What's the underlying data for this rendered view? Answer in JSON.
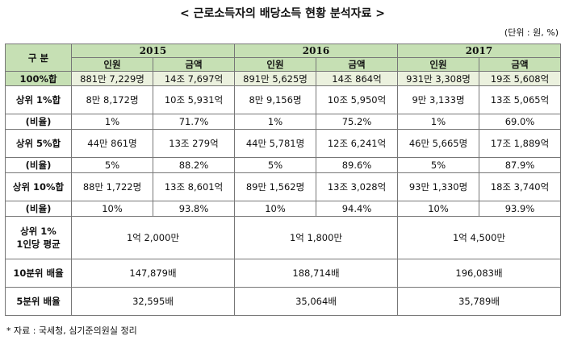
{
  "title": "< 근로소득자의 배당소득 현황 분석자료 >",
  "unit": "(단위 : 원, %)",
  "header": {
    "category": "구  분",
    "years": [
      "2015",
      "2016",
      "2017"
    ],
    "col_people": "인원",
    "col_amount": "금액"
  },
  "rows": [
    {
      "label": "100%합",
      "cells": [
        "881만 7,229명",
        "14조 7,697억",
        "891만 5,625명",
        "14조 864억",
        "931만 3,308명",
        "19조 5,608억"
      ]
    },
    {
      "label": "상위 1%합",
      "cells": [
        "8만 8,172명",
        "10조 5,931억",
        "8만 9,156명",
        "10조 5,950억",
        "9만 3,133명",
        "13조 5,065억"
      ]
    },
    {
      "label": "(비율)",
      "cells": [
        "1%",
        "71.7%",
        "1%",
        "75.2%",
        "1%",
        "69.0%"
      ]
    },
    {
      "label": "상위 5%합",
      "cells": [
        "44만 861명",
        "13조 279억",
        "44만 5,781명",
        "12조 6,241억",
        "46만 5,665명",
        "17조 1,889억"
      ]
    },
    {
      "label": "(비율)",
      "cells": [
        "5%",
        "88.2%",
        "5%",
        "89.6%",
        "5%",
        "87.9%"
      ]
    },
    {
      "label": "상위 10%합",
      "cells": [
        "88만 1,722명",
        "13조 8,601억",
        "89만 1,562명",
        "13조 3,028억",
        "93만 1,330명",
        "18조 3,740억"
      ]
    },
    {
      "label": "(비율)",
      "cells": [
        "10%",
        "93.8%",
        "10%",
        "94.4%",
        "10%",
        "93.9%"
      ]
    }
  ],
  "avg_row": {
    "label_line1": "상위 1%",
    "label_line2": "1인당 평균",
    "values": [
      "1억 2,000만",
      "1억 1,800만",
      "1억 4,500만"
    ]
  },
  "ratio10_row": {
    "label": "10분위 배율",
    "values": [
      "147,879배",
      "188,714배",
      "196,083배"
    ]
  },
  "ratio5_row": {
    "label": "5분위 배율",
    "values": [
      "32,595배",
      "35,064배",
      "35,789배"
    ]
  },
  "note": "* 자료 : 국세청, 심기준의원실 정리"
}
